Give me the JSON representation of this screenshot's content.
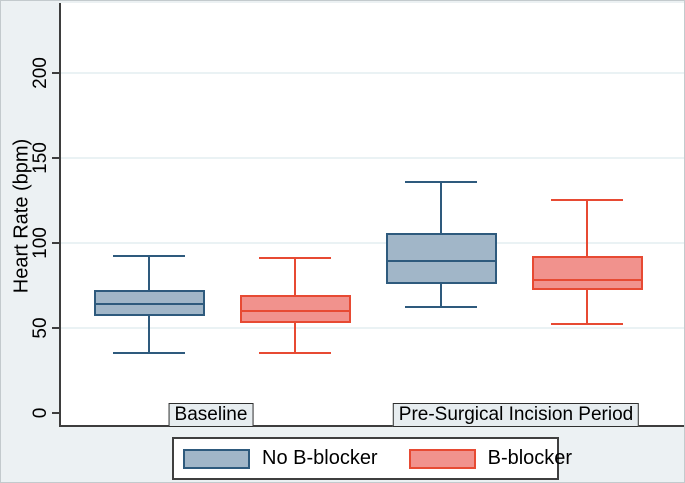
{
  "chart_data": {
    "type": "box",
    "title": "",
    "xlabel": "",
    "ylabel": "Heart Rate (bpm)",
    "y_ticks": [
      0,
      50,
      100,
      150,
      200
    ],
    "ylim": [
      -8,
      241
    ],
    "grid": true,
    "legend_position": "bottom",
    "groups": [
      "Baseline",
      "Pre-Surgical Incision Period"
    ],
    "series": [
      {
        "name": "No B-blocker",
        "fill": "#a1b6c8",
        "stroke": "#2e5a7d",
        "boxes": [
          {
            "group": "Baseline",
            "min": 35,
            "q1": 57,
            "median": 64,
            "q3": 72,
            "max": 92
          },
          {
            "group": "Pre-Surgical Incision Period",
            "min": 62,
            "q1": 76,
            "median": 89,
            "q3": 106,
            "max": 136
          }
        ]
      },
      {
        "name": "B-blocker",
        "fill": "#f1928d",
        "stroke": "#e74a33",
        "boxes": [
          {
            "group": "Baseline",
            "min": 35,
            "q1": 53,
            "median": 60,
            "q3": 69,
            "max": 91
          },
          {
            "group": "Pre-Surgical Incision Period",
            "min": 52,
            "q1": 72,
            "median": 78,
            "q3": 92,
            "max": 125
          }
        ]
      }
    ]
  },
  "colors": {
    "figure_background": "#ecf1f3",
    "plot_background": "#ffffff",
    "axis": "#3d3d3d",
    "gridline": "#eaf2f4",
    "label_box_background": "#e7edf0",
    "legend_background": "#ffffff",
    "no_b_blocker_fill": "#a1b6c8",
    "no_b_blocker_stroke": "#2e5a7d",
    "b_blocker_fill": "#f1928d",
    "b_blocker_stroke": "#e74a33"
  }
}
